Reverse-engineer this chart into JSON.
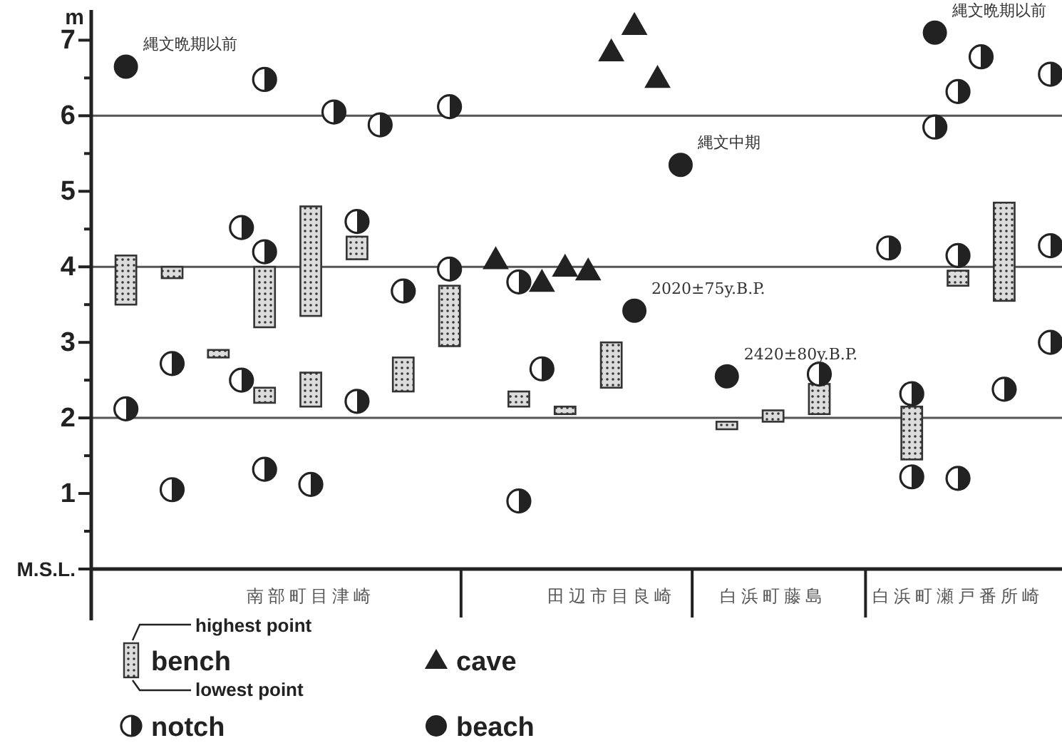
{
  "chart_data": {
    "type": "scatter",
    "ylabel": "m",
    "ylim": [
      0,
      7.4
    ],
    "yticks": [
      {
        "value": 0,
        "label": "M.S.L."
      },
      {
        "value": 0.5,
        "label": null
      },
      1,
      {
        "value": 1.5,
        "label": null
      },
      2,
      {
        "value": 2.5,
        "label": null
      },
      3,
      {
        "value": 3.5,
        "label": null
      },
      4,
      {
        "value": 4.5,
        "label": null
      },
      5,
      {
        "value": 5.5,
        "label": null
      },
      6,
      {
        "value": 6.5,
        "label": null
      },
      7
    ],
    "categories": [
      null,
      null,
      null,
      null,
      null,
      null,
      null,
      null,
      null,
      "南部町目津崎",
      null,
      null,
      null,
      null,
      null,
      null,
      null,
      null,
      null,
      null,
      null,
      null,
      "田辺市目良崎",
      null,
      null,
      null,
      null,
      null,
      null,
      "白浜町藤島",
      null,
      null,
      null,
      null,
      null,
      null,
      null,
      "白浜町瀬戸番所崎",
      null,
      null,
      null,
      null
    ],
    "ref_lines": [
      {
        "axis": "y",
        "value": 2
      },
      {
        "axis": "y",
        "value": 4
      },
      {
        "axis": "y",
        "value": 6
      }
    ],
    "legend": "bottom",
    "annotations": [
      "highest point",
      "lowest point"
    ],
    "series": [
      {
        "name": "bench",
        "type": "bar",
        "color": "#333333",
        "values": [
          null,
          0.65,
          null,
          0.15,
          null,
          0.1,
          null,
          0.8,
          null,
          1.45,
          null,
          0.3,
          null,
          0.45,
          null,
          0.8,
          null,
          null,
          0.2,
          null,
          0.1,
          null,
          0.6,
          null,
          null,
          null,
          null,
          0.1,
          null,
          0.15,
          null,
          0.4,
          null,
          null,
          null,
          0.7,
          null,
          0.2,
          null,
          1.3,
          null,
          null
        ],
        "base": [
          null,
          3.5,
          null,
          3.85,
          null,
          2.8,
          null,
          3.2,
          null,
          3.35,
          null,
          4.1,
          null,
          2.35,
          null,
          2.95,
          null,
          null,
          2.15,
          null,
          2.05,
          null,
          2.4,
          null,
          null,
          null,
          null,
          1.85,
          null,
          1.95,
          null,
          2.05,
          null,
          null,
          null,
          1.45,
          null,
          3.75,
          null,
          3.55,
          null,
          null
        ]
      },
      {
        "type": "bar",
        "color": "#333333",
        "values": [
          null,
          null,
          null,
          null,
          null,
          null,
          null,
          0.2,
          null,
          0.45,
          null,
          null,
          null,
          null,
          null,
          null,
          null,
          null,
          null,
          null,
          null,
          null,
          null,
          null,
          null,
          null,
          null,
          null,
          null,
          null,
          null,
          null,
          null,
          null,
          null,
          null,
          null,
          null,
          null,
          null,
          null,
          null
        ],
        "base": [
          null,
          null,
          null,
          null,
          null,
          null,
          null,
          2.2,
          null,
          2.15,
          null,
          null,
          null,
          null,
          null,
          null,
          null,
          null,
          null,
          null,
          null,
          null,
          null,
          null,
          null,
          null,
          null,
          null,
          null,
          null,
          null,
          null,
          null,
          null,
          null,
          null,
          null,
          null,
          null,
          null,
          null,
          null
        ]
      },
      {
        "name": "notch",
        "marker": "half circle",
        "color": "#222222",
        "values": [
          null,
          2.12,
          null,
          2.72,
          null,
          null,
          4.52,
          6.48,
          null,
          1.12,
          6.05,
          4.6,
          5.88,
          3.68,
          null,
          6.12,
          null,
          null,
          3.8,
          2.65,
          null,
          null,
          null,
          null,
          null,
          null,
          null,
          null,
          null,
          null,
          null,
          2.58,
          null,
          null,
          4.25,
          2.32,
          5.85,
          6.32,
          6.78,
          2.38,
          null,
          6.55
        ]
      },
      {
        "marker": "half circle",
        "color": "#222222",
        "values": [
          null,
          null,
          null,
          1.05,
          null,
          null,
          2.5,
          4.2,
          null,
          null,
          null,
          2.22,
          null,
          null,
          null,
          3.97,
          null,
          null,
          0.9,
          null,
          null,
          null,
          null,
          null,
          null,
          null,
          null,
          null,
          null,
          null,
          null,
          null,
          null,
          null,
          null,
          1.22,
          null,
          4.15,
          null,
          null,
          null,
          4.28
        ]
      },
      {
        "marker": "half circle",
        "color": "#222222",
        "values": [
          null,
          null,
          null,
          null,
          null,
          null,
          null,
          1.32,
          null,
          null,
          null,
          null,
          null,
          null,
          null,
          null,
          null,
          null,
          null,
          null,
          null,
          null,
          null,
          null,
          null,
          null,
          null,
          null,
          null,
          null,
          null,
          null,
          null,
          null,
          null,
          null,
          null,
          1.2,
          null,
          null,
          null,
          3.0
        ]
      },
      {
        "name": "cave",
        "marker": "triangle",
        "color": "#222222",
        "values": [
          null,
          null,
          null,
          null,
          null,
          null,
          null,
          null,
          null,
          null,
          null,
          null,
          null,
          null,
          null,
          null,
          null,
          4.1,
          null,
          3.8,
          4.0,
          3.95,
          6.85,
          7.2,
          6.5,
          null,
          null,
          null,
          null,
          null,
          null,
          null,
          null,
          null,
          null,
          null,
          null,
          null,
          null,
          null,
          null,
          null
        ]
      },
      {
        "name": "beach",
        "marker": "circle",
        "color": "#222222",
        "values": [
          null,
          6.65,
          null,
          null,
          null,
          null,
          null,
          null,
          null,
          null,
          null,
          null,
          null,
          null,
          null,
          null,
          null,
          null,
          null,
          null,
          null,
          null,
          null,
          3.42,
          null,
          5.35,
          null,
          2.55,
          null,
          null,
          null,
          null,
          null,
          null,
          null,
          null,
          7.1,
          null,
          null,
          null,
          null,
          null
        ],
        "value_labels": [
          null,
          "縄文晩期以前",
          null,
          null,
          null,
          null,
          null,
          null,
          null,
          null,
          null,
          null,
          null,
          null,
          null,
          null,
          null,
          null,
          null,
          null,
          null,
          null,
          null,
          "2020±75y.B.P.",
          null,
          "縄文中期",
          null,
          "2420±80y.B.P.",
          null,
          null,
          null,
          null,
          null,
          null,
          null,
          null,
          "縄文晩期以前",
          null,
          null,
          null,
          null,
          null
        ]
      }
    ]
  }
}
